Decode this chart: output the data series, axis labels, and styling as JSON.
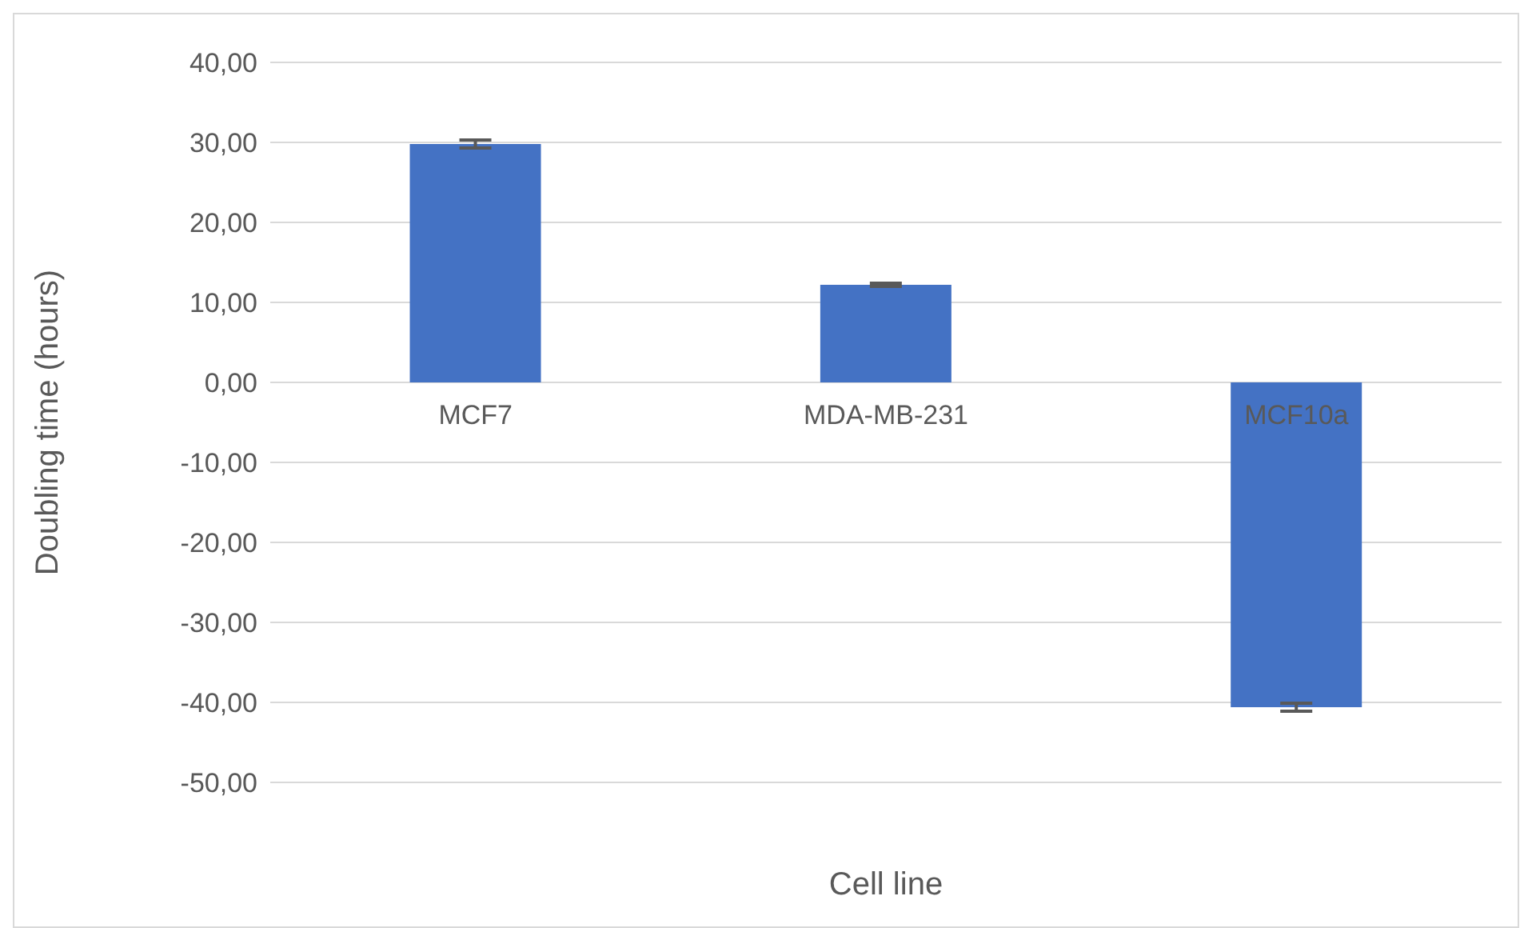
{
  "chart_data": {
    "type": "bar",
    "xlabel": "Cell line",
    "ylabel": "Doubling time (hours)",
    "categories": [
      "MCF7",
      "MDA-MB-231",
      "MCF10a"
    ],
    "values": [
      29.8,
      12.2,
      -40.6
    ],
    "errors": [
      0.5,
      0.2,
      0.5
    ],
    "color": "#4472c4",
    "ylim": [
      -50,
      40
    ],
    "yticks": [
      {
        "value": -50,
        "label": "-50,00"
      },
      {
        "value": -40,
        "label": "-40,00"
      },
      {
        "value": -30,
        "label": "-30,00"
      },
      {
        "value": -20,
        "label": "-20,00"
      },
      {
        "value": -10,
        "label": "-10,00"
      },
      {
        "value": 0,
        "label": "0,00"
      },
      {
        "value": 10,
        "label": "10,00"
      },
      {
        "value": 20,
        "label": "20,00"
      },
      {
        "value": 30,
        "label": "30,00"
      },
      {
        "value": 40,
        "label": "40,00"
      }
    ],
    "grid": "y"
  }
}
